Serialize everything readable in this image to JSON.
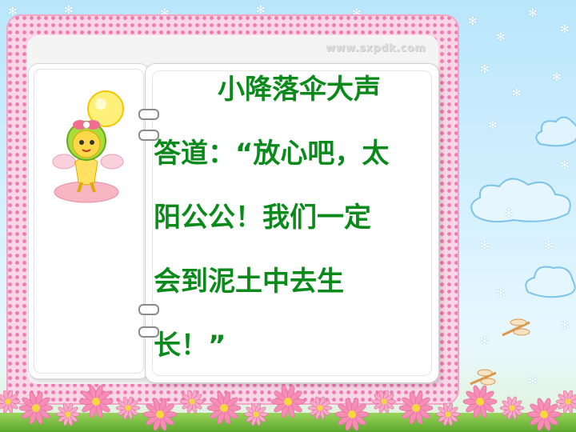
{
  "watermark": "www.sxpdk.com",
  "story": {
    "lines": [
      "小降落伞大声",
      "答道：“放心吧，太",
      "阳公公！我们一定",
      "会到泥土中去生",
      "长！”"
    ]
  },
  "colors": {
    "text": "#0a8a1a",
    "frame_dots": "#f07bb0",
    "sky": "#b9e6fb"
  },
  "icons": {
    "mascot": "flower-fairy-icon",
    "dandelion": "dandelion-seed-icon",
    "dragonfly": "dragonfly-icon",
    "flower": "pink-daisy-icon"
  }
}
